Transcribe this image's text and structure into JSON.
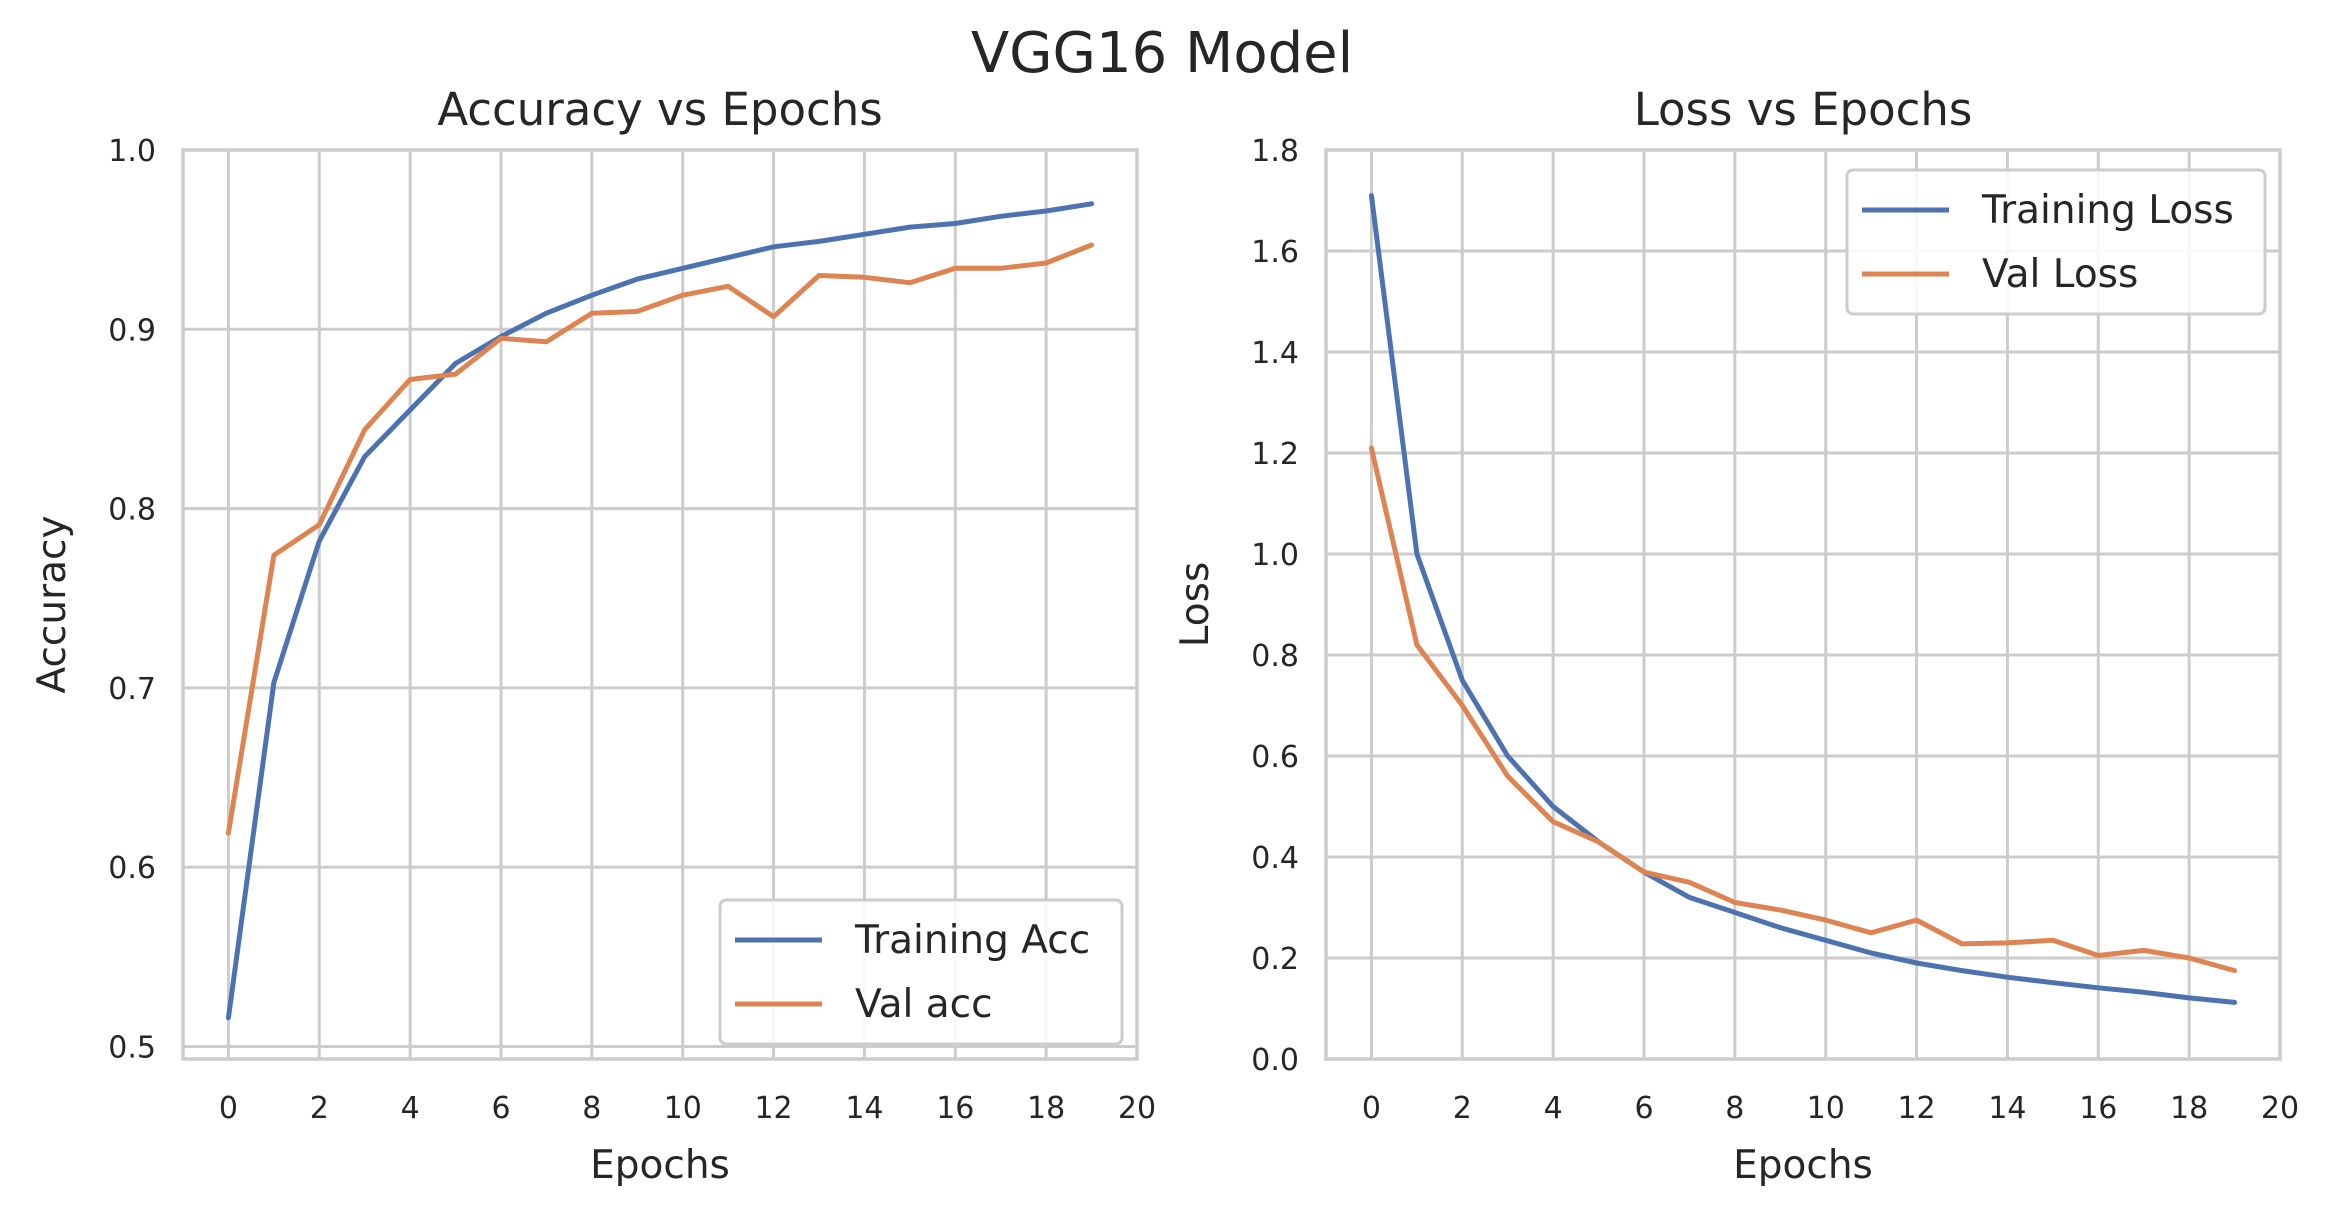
{
  "suptitle": "VGG16 Model",
  "colors": {
    "training": "#4c72b0",
    "validation": "#dd8452",
    "grid": "#cccccc"
  },
  "chart_data": [
    {
      "type": "line",
      "title": "Accuracy vs Epochs",
      "xlabel": "Epochs",
      "ylabel": "Accuracy",
      "xlim": [
        -1,
        20
      ],
      "ylim": [
        0.493,
        1.0
      ],
      "xticks": [
        0,
        2,
        4,
        6,
        8,
        10,
        12,
        14,
        16,
        18,
        20
      ],
      "yticks": [
        0.5,
        0.6,
        0.7,
        0.8,
        0.9,
        1.0
      ],
      "ytick_labels": [
        "0.5",
        "0.6",
        "0.7",
        "0.8",
        "0.9",
        "1.0"
      ],
      "grid": true,
      "legend_position": "lower-right",
      "x": [
        0,
        1,
        2,
        3,
        4,
        5,
        6,
        7,
        8,
        9,
        10,
        11,
        12,
        13,
        14,
        15,
        16,
        17,
        18,
        19
      ],
      "series": [
        {
          "name": "Training Acc",
          "color_key": "training",
          "values": [
            0.516,
            0.703,
            0.782,
            0.829,
            0.855,
            0.881,
            0.896,
            0.909,
            0.919,
            0.928,
            0.934,
            0.94,
            0.946,
            0.949,
            0.953,
            0.957,
            0.959,
            0.963,
            0.966,
            0.97
          ]
        },
        {
          "name": "Val acc",
          "color_key": "validation",
          "values": [
            0.619,
            0.774,
            0.791,
            0.844,
            0.872,
            0.875,
            0.895,
            0.893,
            0.909,
            0.91,
            0.919,
            0.924,
            0.907,
            0.93,
            0.929,
            0.926,
            0.934,
            0.934,
            0.937,
            0.947
          ]
        }
      ]
    },
    {
      "type": "line",
      "title": "Loss vs Epochs",
      "xlabel": "Epochs",
      "ylabel": "Loss",
      "xlim": [
        -1,
        20
      ],
      "ylim": [
        0.0,
        1.8
      ],
      "xticks": [
        0,
        2,
        4,
        6,
        8,
        10,
        12,
        14,
        16,
        18,
        20
      ],
      "yticks": [
        0.0,
        0.2,
        0.4,
        0.6,
        0.8,
        1.0,
        1.2,
        1.4,
        1.6,
        1.8
      ],
      "ytick_labels": [
        "0.0",
        "0.2",
        "0.4",
        "0.6",
        "0.8",
        "1.0",
        "1.2",
        "1.4",
        "1.6",
        "1.8"
      ],
      "grid": true,
      "legend_position": "upper-right",
      "x": [
        0,
        1,
        2,
        3,
        4,
        5,
        6,
        7,
        8,
        9,
        10,
        11,
        12,
        13,
        14,
        15,
        16,
        17,
        18,
        19
      ],
      "series": [
        {
          "name": "Training Loss",
          "color_key": "training",
          "values": [
            1.71,
            1.0,
            0.75,
            0.6,
            0.5,
            0.43,
            0.37,
            0.32,
            0.29,
            0.26,
            0.235,
            0.21,
            0.19,
            0.175,
            0.162,
            0.151,
            0.141,
            0.132,
            0.121,
            0.112
          ]
        },
        {
          "name": "Val Loss",
          "color_key": "validation",
          "values": [
            1.21,
            0.82,
            0.7,
            0.56,
            0.47,
            0.43,
            0.37,
            0.35,
            0.31,
            0.295,
            0.275,
            0.25,
            0.275,
            0.228,
            0.23,
            0.235,
            0.205,
            0.215,
            0.2,
            0.175
          ]
        }
      ]
    }
  ]
}
